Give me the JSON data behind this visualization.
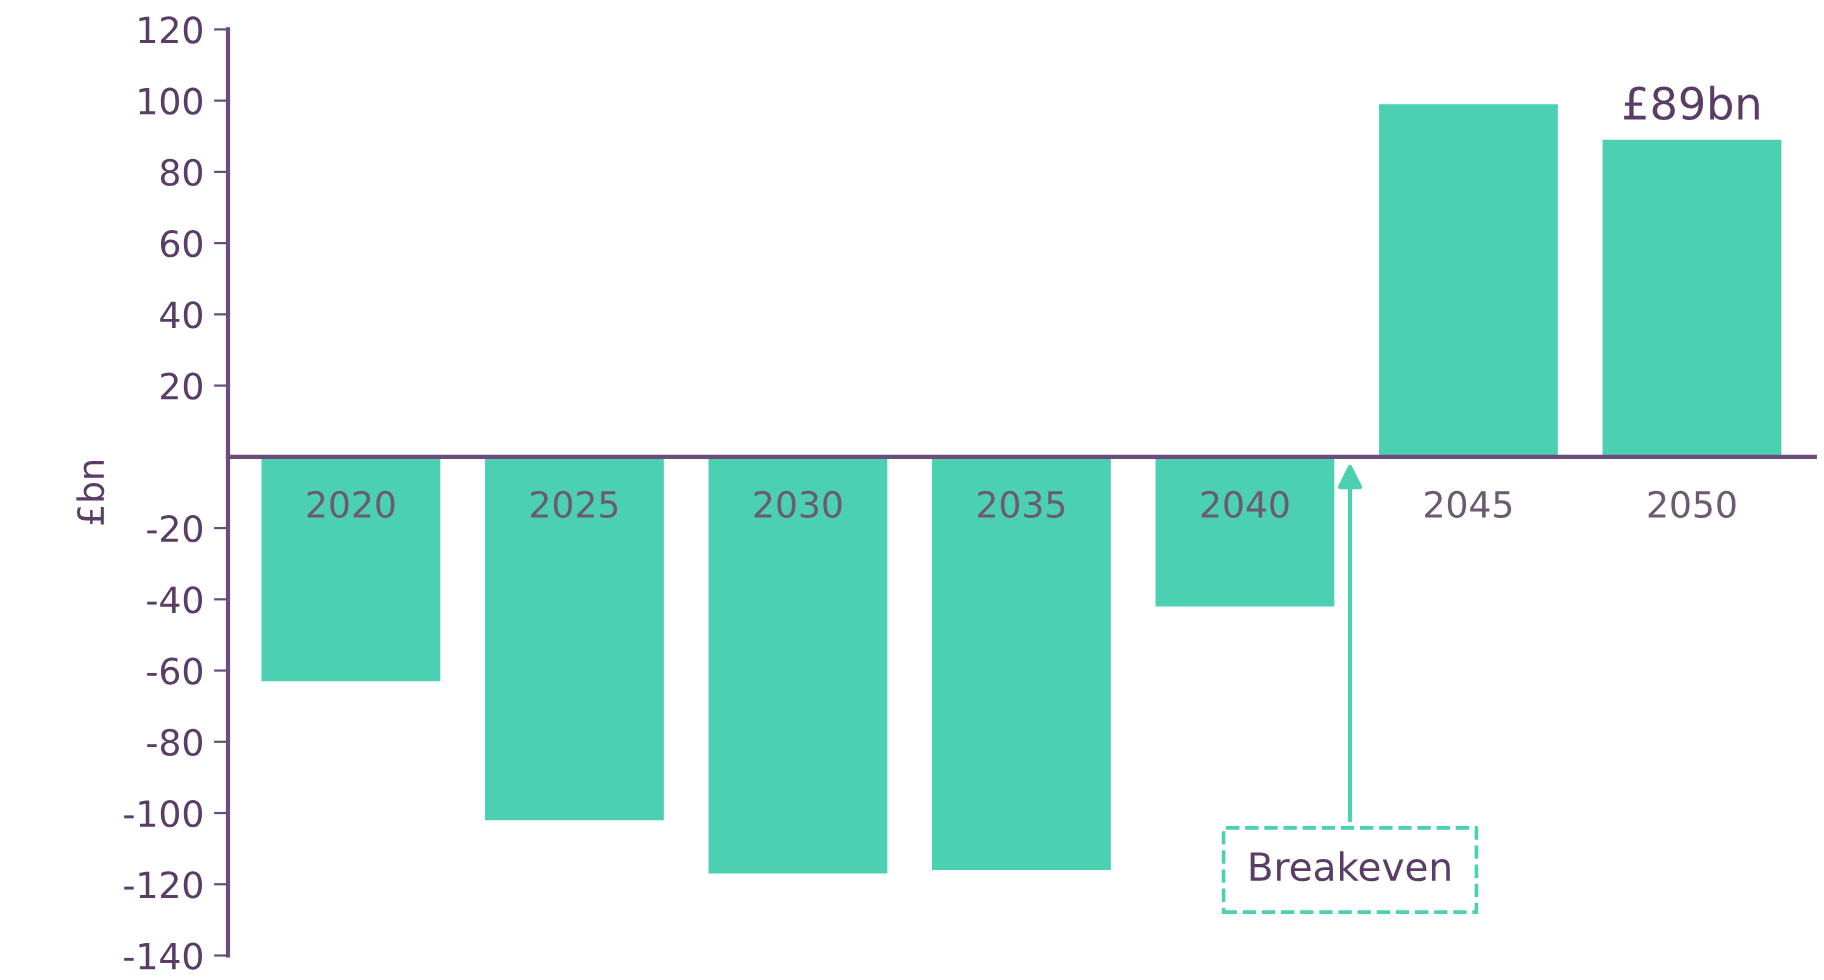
{
  "chart_data": {
    "type": "bar",
    "ylabel": "£bn",
    "categories": [
      "2020",
      "2025",
      "2030",
      "2035",
      "2040",
      "2045",
      "2050"
    ],
    "values": [
      -63,
      -102,
      -117,
      -116,
      -42,
      99,
      89
    ],
    "value_labels": [
      null,
      null,
      null,
      null,
      null,
      null,
      "£89bn"
    ],
    "color": "#4bd1b1",
    "ylim": [
      -140,
      120
    ],
    "yticks": [
      -140,
      -120,
      -100,
      -80,
      -60,
      -40,
      -20,
      20,
      40,
      60,
      80,
      100,
      120
    ],
    "annotations": [
      "Breakeven"
    ],
    "grid": false,
    "legend": false
  }
}
